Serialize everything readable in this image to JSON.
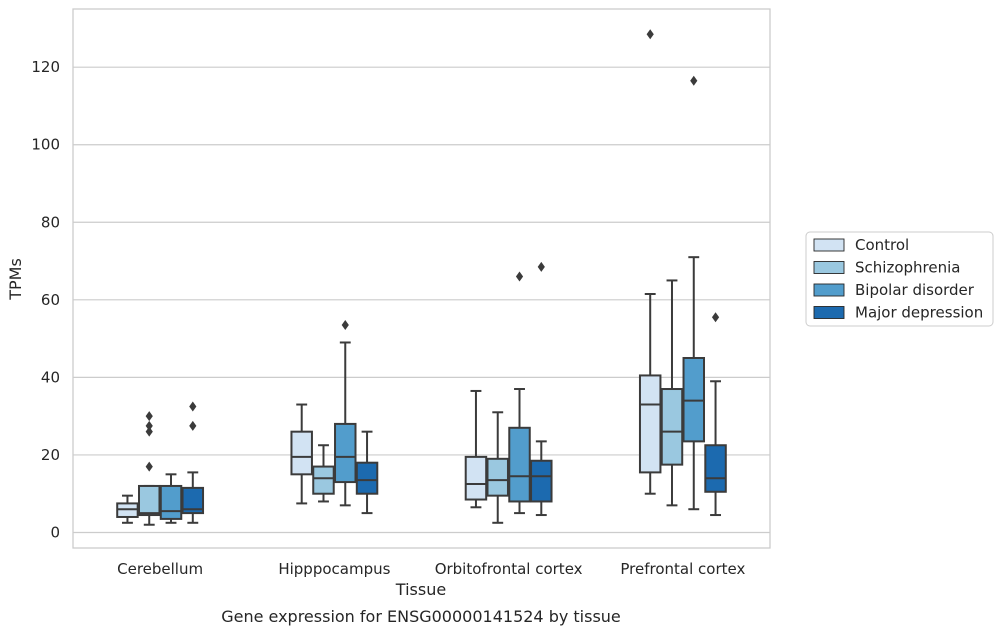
{
  "chart_data": {
    "type": "box",
    "title": "",
    "caption": "Gene expression for ENSG00000141524 by tissue",
    "xlabel": "Tissue",
    "ylabel": "TPMs",
    "ylim": [
      -4,
      135
    ],
    "yticks": [
      0,
      20,
      40,
      60,
      80,
      100,
      120
    ],
    "grid": "horizontal",
    "legend_position": "right",
    "categories": [
      "Cerebellum",
      "Hipppocampus",
      "Orbitofrontal cortex",
      "Prefrontal cortex"
    ],
    "series": [
      {
        "name": "Control",
        "color": "#d2e3f3",
        "boxes": [
          {
            "whislo": 2.5,
            "q1": 4,
            "med": 6,
            "q3": 7.5,
            "whishi": 9.5,
            "fliers": []
          },
          {
            "whislo": 7.5,
            "q1": 15,
            "med": 19.5,
            "q3": 26,
            "whishi": 33,
            "fliers": []
          },
          {
            "whislo": 6.5,
            "q1": 8.5,
            "med": 12.5,
            "q3": 19.5,
            "whishi": 36.5,
            "fliers": []
          },
          {
            "whislo": 10,
            "q1": 15.5,
            "med": 33,
            "q3": 40.5,
            "whishi": 61.5,
            "fliers": [
              128.5
            ]
          }
        ]
      },
      {
        "name": "Schizophrenia",
        "color": "#9ac8e0",
        "boxes": [
          {
            "whislo": 2,
            "q1": 4.5,
            "med": 5,
            "q3": 12,
            "whishi": 12,
            "fliers": [
              17,
              26,
              27.5,
              30
            ]
          },
          {
            "whislo": 8,
            "q1": 10,
            "med": 14,
            "q3": 17,
            "whishi": 22.5,
            "fliers": []
          },
          {
            "whislo": 2.5,
            "q1": 9.5,
            "med": 13.5,
            "q3": 19,
            "whishi": 31,
            "fliers": []
          },
          {
            "whislo": 7,
            "q1": 17.5,
            "med": 26,
            "q3": 37,
            "whishi": 65,
            "fliers": []
          }
        ]
      },
      {
        "name": "Bipolar disorder",
        "color": "#529dcc",
        "boxes": [
          {
            "whislo": 2.5,
            "q1": 3.5,
            "med": 5.5,
            "q3": 12,
            "whishi": 15,
            "fliers": []
          },
          {
            "whislo": 7,
            "q1": 13,
            "med": 19.5,
            "q3": 28,
            "whishi": 49,
            "fliers": [
              53.5
            ]
          },
          {
            "whislo": 5,
            "q1": 8,
            "med": 14.5,
            "q3": 27,
            "whishi": 37,
            "fliers": [
              66
            ]
          },
          {
            "whislo": 6,
            "q1": 23.5,
            "med": 34,
            "q3": 45,
            "whishi": 71,
            "fliers": [
              116.5
            ]
          }
        ]
      },
      {
        "name": "Major depression",
        "color": "#1c6aaf",
        "boxes": [
          {
            "whislo": 2.5,
            "q1": 5,
            "med": 6,
            "q3": 11.5,
            "whishi": 15.5,
            "fliers": [
              27.5,
              32.5
            ]
          },
          {
            "whislo": 5,
            "q1": 10,
            "med": 13.5,
            "q3": 18,
            "whishi": 26,
            "fliers": []
          },
          {
            "whislo": 4.5,
            "q1": 8,
            "med": 14.5,
            "q3": 18.5,
            "whishi": 23.5,
            "fliers": [
              68.5
            ]
          },
          {
            "whislo": 4.5,
            "q1": 10.5,
            "med": 14,
            "q3": 22.5,
            "whishi": 39,
            "fliers": [
              55.5
            ]
          }
        ]
      }
    ]
  }
}
